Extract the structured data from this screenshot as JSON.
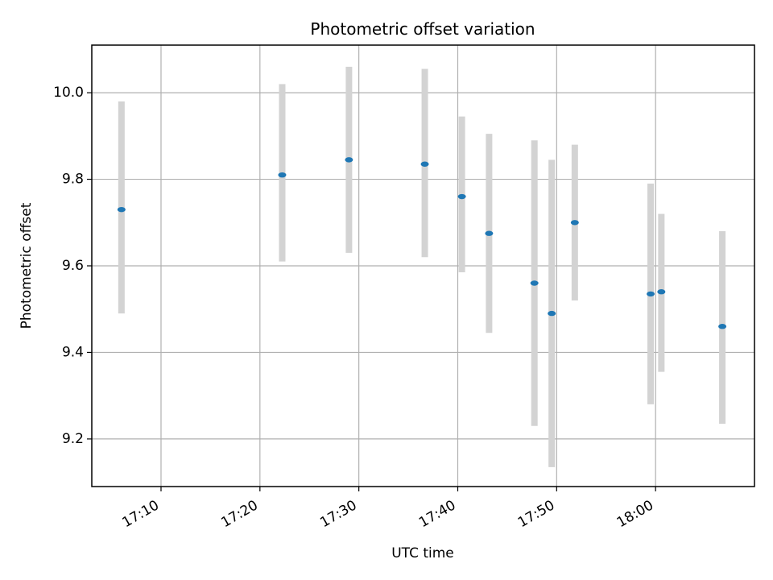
{
  "chart_data": {
    "type": "scatter",
    "title": "Photometric offset variation",
    "xlabel": "UTC time",
    "ylabel": "Photometric offset",
    "x_ticks": [
      "17:10",
      "17:20",
      "17:30",
      "17:40",
      "17:50",
      "18:00"
    ],
    "y_ticks": [
      "9.2",
      "9.4",
      "9.6",
      "9.8",
      "10.0"
    ],
    "xlim": [
      "17:03:00",
      "18:10:00"
    ],
    "ylim": [
      9.09,
      10.11
    ],
    "grid": true,
    "marker_color": "#1f77b4",
    "errorbar_color": "#d3d3d3",
    "points": [
      {
        "x": "17:06:00",
        "y": 9.73,
        "ylo": 9.49,
        "yhi": 9.98
      },
      {
        "x": "17:22:15",
        "y": 9.81,
        "ylo": 9.61,
        "yhi": 10.02
      },
      {
        "x": "17:29:00",
        "y": 9.845,
        "ylo": 9.63,
        "yhi": 10.06
      },
      {
        "x": "17:36:40",
        "y": 9.835,
        "ylo": 9.62,
        "yhi": 10.055
      },
      {
        "x": "17:40:25",
        "y": 9.76,
        "ylo": 9.585,
        "yhi": 9.945
      },
      {
        "x": "17:43:10",
        "y": 9.675,
        "ylo": 9.445,
        "yhi": 9.905
      },
      {
        "x": "17:47:45",
        "y": 9.56,
        "ylo": 9.23,
        "yhi": 9.89
      },
      {
        "x": "17:49:30",
        "y": 9.49,
        "ylo": 9.135,
        "yhi": 9.845
      },
      {
        "x": "17:51:50",
        "y": 9.7,
        "ylo": 9.52,
        "yhi": 9.88
      },
      {
        "x": "17:59:30",
        "y": 9.535,
        "ylo": 9.28,
        "yhi": 9.79
      },
      {
        "x": "18:00:35",
        "y": 9.54,
        "ylo": 9.355,
        "yhi": 9.72
      },
      {
        "x": "18:06:45",
        "y": 9.46,
        "ylo": 9.235,
        "yhi": 9.68
      }
    ]
  }
}
